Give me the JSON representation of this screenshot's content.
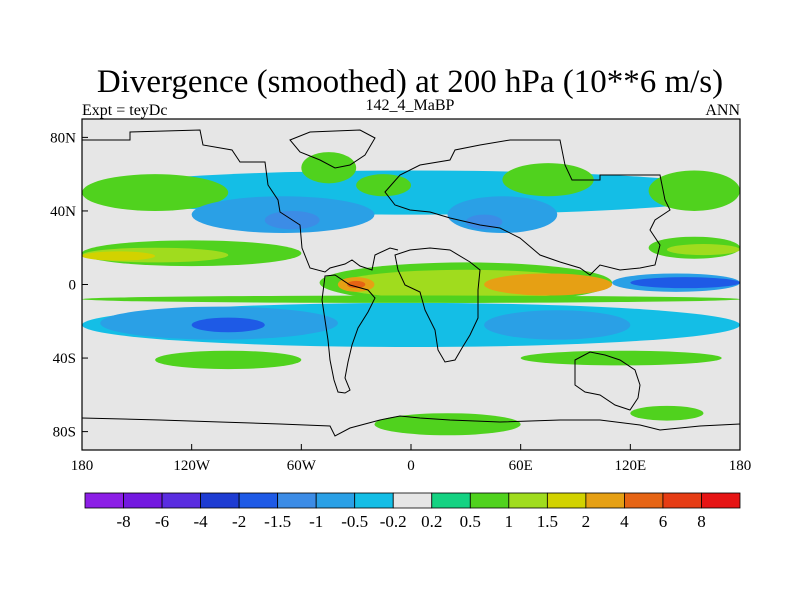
{
  "chart_data": {
    "type": "heatmap",
    "title": "Divergence (smoothed) at 200 hPa (10**6 m/s)",
    "left_label": "Expt = teyDc",
    "center_label": "142_4_MaBP",
    "right_label": "ANN",
    "x_ticks": [
      "180",
      "120W",
      "60W",
      "0",
      "60E",
      "120E",
      "180"
    ],
    "x_tick_values": [
      -180,
      -120,
      -60,
      0,
      60,
      120,
      180
    ],
    "y_ticks": [
      "80N",
      "40N",
      "0",
      "40S",
      "80S"
    ],
    "y_tick_values": [
      80,
      40,
      0,
      -40,
      -80
    ],
    "xlim": [
      -180,
      180
    ],
    "ylim": [
      -90,
      90
    ],
    "colorbar": {
      "levels": [
        "-8",
        "-6",
        "-4",
        "-2",
        "-1.5",
        "-1",
        "-0.5",
        "-0.2",
        "0.2",
        "0.5",
        "1",
        "1.5",
        "2",
        "4",
        "6",
        "8"
      ],
      "colors": [
        "#8c1ee6",
        "#7318e0",
        "#5a2de0",
        "#1e3cd2",
        "#1e5ae6",
        "#3c8ce6",
        "#2aa0e6",
        "#14bee6",
        "#e6e6e6",
        "#14d282",
        "#50d21e",
        "#a0dc1e",
        "#d2d200",
        "#e6a014",
        "#e66414",
        "#e63c14",
        "#e61414"
      ]
    },
    "regions": [
      {
        "level": -0.5,
        "lon": [
          -180,
          180
        ],
        "lat": [
          38,
          62
        ]
      },
      {
        "level": 0.5,
        "lon": [
          -180,
          -100
        ],
        "lat": [
          40,
          60
        ]
      },
      {
        "level": 0.5,
        "lon": [
          -60,
          -30
        ],
        "lat": [
          55,
          72
        ]
      },
      {
        "level": 0.5,
        "lon": [
          -30,
          0
        ],
        "lat": [
          48,
          60
        ]
      },
      {
        "level": 0.5,
        "lon": [
          50,
          100
        ],
        "lat": [
          48,
          66
        ]
      },
      {
        "level": 0.5,
        "lon": [
          130,
          180
        ],
        "lat": [
          40,
          62
        ]
      },
      {
        "level": -1,
        "lon": [
          -120,
          -20
        ],
        "lat": [
          28,
          48
        ]
      },
      {
        "level": -1,
        "lon": [
          20,
          80
        ],
        "lat": [
          28,
          48
        ]
      },
      {
        "level": -1.5,
        "lon": [
          -80,
          -50
        ],
        "lat": [
          30,
          40
        ]
      },
      {
        "level": -1.5,
        "lon": [
          30,
          50
        ],
        "lat": [
          30,
          38
        ]
      },
      {
        "level": 0.5,
        "lon": [
          -180,
          -60
        ],
        "lat": [
          10,
          24
        ]
      },
      {
        "level": 1,
        "lon": [
          -180,
          -100
        ],
        "lat": [
          12,
          20
        ]
      },
      {
        "level": 1.5,
        "lon": [
          -180,
          -140
        ],
        "lat": [
          13,
          18
        ]
      },
      {
        "level": 0.5,
        "lon": [
          130,
          180
        ],
        "lat": [
          14,
          26
        ]
      },
      {
        "level": 1,
        "lon": [
          140,
          180
        ],
        "lat": [
          16,
          22
        ]
      },
      {
        "level": 0.5,
        "lon": [
          -50,
          110
        ],
        "lat": [
          -10,
          12
        ]
      },
      {
        "level": 1,
        "lon": [
          -40,
          100
        ],
        "lat": [
          -8,
          8
        ]
      },
      {
        "level": 2,
        "lon": [
          -40,
          -20
        ],
        "lat": [
          -4,
          4
        ]
      },
      {
        "level": 2,
        "lon": [
          40,
          110
        ],
        "lat": [
          -6,
          6
        ]
      },
      {
        "level": 4,
        "lon": [
          -35,
          -25
        ],
        "lat": [
          -2,
          2
        ]
      },
      {
        "level": -1,
        "lon": [
          110,
          180
        ],
        "lat": [
          -4,
          6
        ]
      },
      {
        "level": -2,
        "lon": [
          120,
          180
        ],
        "lat": [
          -2,
          4
        ]
      },
      {
        "level": -0.5,
        "lon": [
          -180,
          180
        ],
        "lat": [
          -34,
          -10
        ]
      },
      {
        "level": -1,
        "lon": [
          -170,
          -40
        ],
        "lat": [
          -30,
          -12
        ]
      },
      {
        "level": -1,
        "lon": [
          40,
          120
        ],
        "lat": [
          -30,
          -14
        ]
      },
      {
        "level": -2,
        "lon": [
          -120,
          -80
        ],
        "lat": [
          -26,
          -18
        ]
      },
      {
        "level": 0.5,
        "lon": [
          -180,
          180
        ],
        "lat": [
          -10,
          -6
        ]
      },
      {
        "level": 0.5,
        "lon": [
          -140,
          -60
        ],
        "lat": [
          -46,
          -36
        ]
      },
      {
        "level": 0.5,
        "lon": [
          60,
          170
        ],
        "lat": [
          -44,
          -36
        ]
      },
      {
        "level": 0.5,
        "lon": [
          -20,
          60
        ],
        "lat": [
          -82,
          -70
        ]
      },
      {
        "level": 0.5,
        "lon": [
          120,
          160
        ],
        "lat": [
          -74,
          -66
        ]
      }
    ]
  }
}
